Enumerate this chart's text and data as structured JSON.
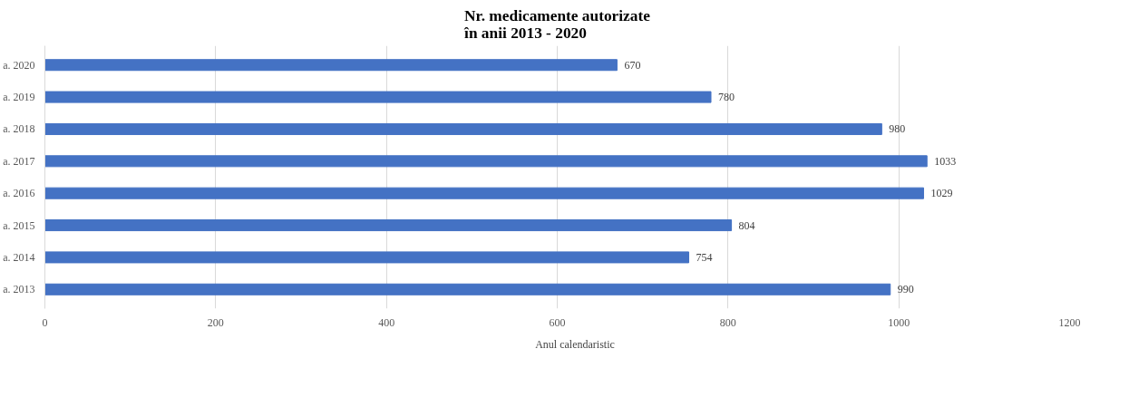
{
  "chart_data": {
    "type": "bar",
    "orientation": "horizontal",
    "title": "Nr. medicamente autorizate\nîn anii 2013 - 2020",
    "categories": [
      "a. 2020",
      "a. 2019",
      "a. 2018",
      "a. 2017",
      "a. 2016",
      "a. 2015",
      "a. 2014",
      "a. 2013"
    ],
    "series": [
      {
        "name": "Anul calendaristic",
        "color": "#4472c4",
        "values": [
          670,
          780,
          980,
          1033,
          1029,
          804,
          754,
          990
        ]
      }
    ],
    "xlim": [
      0,
      1200
    ],
    "xticks": [
      0,
      200,
      400,
      600,
      800,
      1000,
      1200
    ],
    "grid": "x",
    "legend": "bottom",
    "data_labels": true
  }
}
